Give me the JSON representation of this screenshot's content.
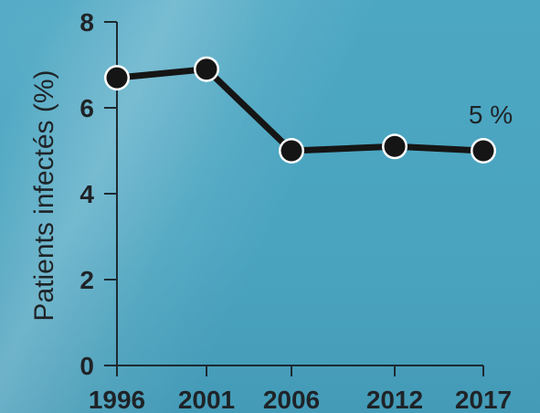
{
  "chart_data": {
    "type": "line",
    "x": [
      "1996",
      "2001",
      "2006",
      "2012",
      "2017"
    ],
    "series": [
      {
        "values": [
          6.7,
          6.9,
          5.0,
          5.1,
          5.0
        ]
      }
    ],
    "ylabel": "Patients infectés (%)",
    "ylim": [
      0,
      8
    ],
    "yticks": [
      "0",
      "2",
      "4",
      "6",
      "8"
    ],
    "annotation": {
      "text": "5 %",
      "x": "2017",
      "y": 5.0
    },
    "grid": false,
    "colors": {
      "line": "#151515",
      "point_fill": "#151515",
      "point_stroke": "#ffffff",
      "axis": "#1d2a31",
      "text": "#1f2327",
      "background": "#4ca7c3"
    }
  }
}
